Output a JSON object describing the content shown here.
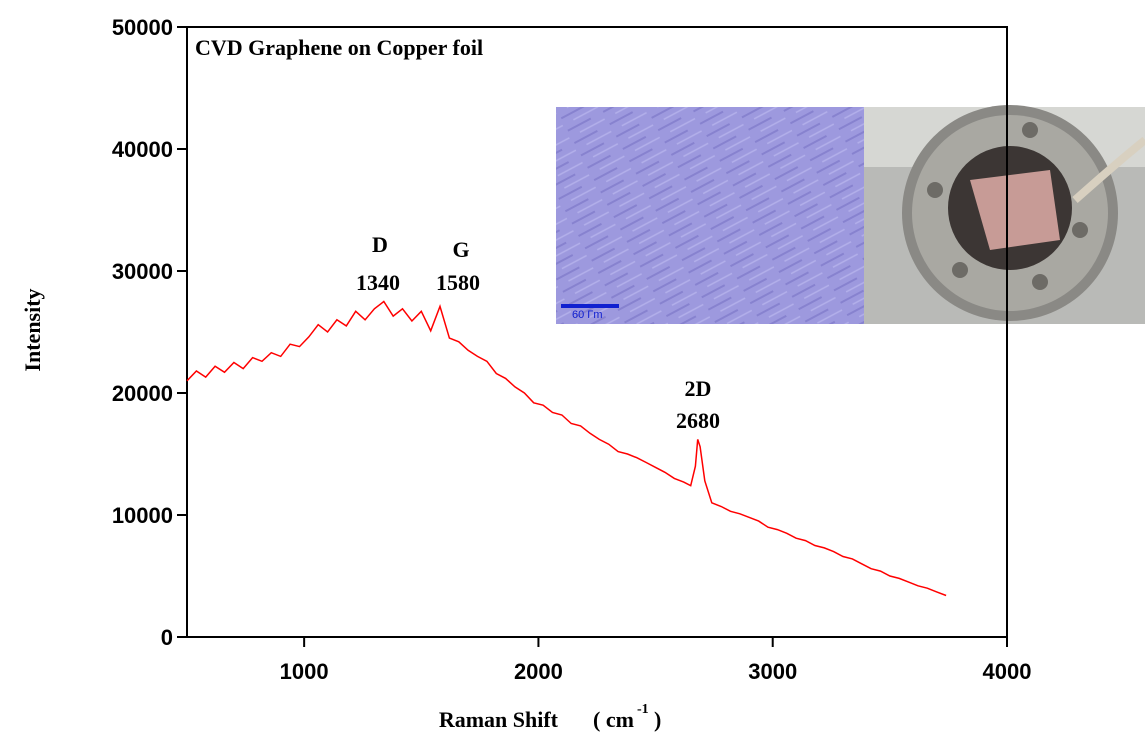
{
  "chart_data": {
    "type": "line",
    "title": "CVD Graphene on Copper foil",
    "y_label": "Intensity",
    "x_label": "Raman Shift",
    "x_unit_open": "( cm",
    "x_unit_sup": "-1",
    "x_unit_close": ")",
    "annotations": [
      "D",
      "1340",
      "G",
      "1580",
      "2D",
      "2680"
    ],
    "inset_scale_label": "60 Γm",
    "xlim": [
      500,
      4000
    ],
    "xticks": [
      1000,
      2000,
      3000,
      4000
    ],
    "ylim": [
      0,
      50000
    ],
    "yticks": [
      0,
      10000,
      20000,
      30000,
      40000,
      50000
    ],
    "x": [
      500,
      540,
      580,
      620,
      660,
      700,
      740,
      780,
      820,
      860,
      900,
      940,
      980,
      1020,
      1060,
      1100,
      1140,
      1180,
      1220,
      1260,
      1300,
      1340,
      1380,
      1420,
      1460,
      1500,
      1540,
      1580,
      1620,
      1660,
      1700,
      1740,
      1780,
      1820,
      1860,
      1900,
      1940,
      1980,
      2020,
      2060,
      2100,
      2140,
      2180,
      2220,
      2260,
      2300,
      2340,
      2380,
      2420,
      2460,
      2500,
      2540,
      2580,
      2620,
      2650,
      2670,
      2680,
      2690,
      2710,
      2740,
      2780,
      2820,
      2860,
      2900,
      2940,
      2980,
      3020,
      3060,
      3100,
      3140,
      3180,
      3220,
      3260,
      3300,
      3340,
      3380,
      3420,
      3460,
      3500,
      3540,
      3580,
      3620,
      3660,
      3700,
      3740
    ],
    "series": [
      {
        "color": "#ff0000",
        "values": [
          21000,
          21800,
          21300,
          22200,
          21700,
          22500,
          22000,
          22900,
          22600,
          23300,
          23000,
          24000,
          23800,
          24600,
          25600,
          25000,
          26000,
          25500,
          26700,
          26000,
          26900,
          27500,
          26300,
          26900,
          25900,
          26700,
          25100,
          27100,
          24500,
          24200,
          23500,
          23000,
          22600,
          21600,
          21200,
          20500,
          20000,
          19200,
          19000,
          18400,
          18200,
          17500,
          17300,
          16700,
          16200,
          15800,
          15200,
          15000,
          14700,
          14300,
          13900,
          13500,
          13000,
          12700,
          12400,
          14000,
          16200,
          15600,
          12800,
          11000,
          10700,
          10300,
          10100,
          9800,
          9500,
          9000,
          8800,
          8500,
          8100,
          7900,
          7500,
          7300,
          7000,
          6600,
          6400,
          6000,
          5600,
          5400,
          5000,
          4800,
          4500,
          4200,
          4000,
          3700,
          3400
        ]
      }
    ]
  }
}
